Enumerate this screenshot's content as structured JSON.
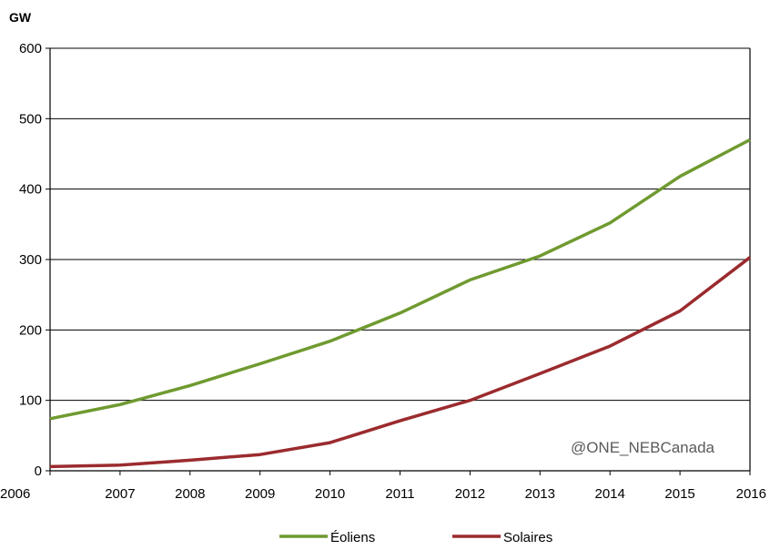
{
  "chart_data": {
    "type": "line",
    "y_unit": "GW",
    "x": [
      "2006",
      "2007",
      "2008",
      "2009",
      "2010",
      "2011",
      "2012",
      "2013",
      "2014",
      "2015",
      "2016"
    ],
    "ylim": [
      0,
      600
    ],
    "yticks": [
      0,
      100,
      200,
      300,
      400,
      500,
      600
    ],
    "grid": true,
    "legend_position": "bottom",
    "series": [
      {
        "name": "Éoliens",
        "color": "#6f9a30",
        "values": [
          74,
          94,
          121,
          152,
          184,
          224,
          271,
          305,
          352,
          418,
          470
        ]
      },
      {
        "name": "Solaires",
        "color": "#9b2b2e",
        "values": [
          6,
          8,
          15,
          23,
          40,
          71,
          100,
          138,
          177,
          227,
          303
        ]
      }
    ],
    "annotation": "@ONE_NEBCanada"
  }
}
